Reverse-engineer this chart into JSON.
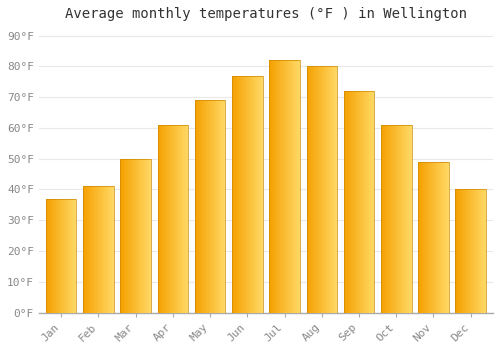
{
  "title": "Average monthly temperatures (°F ) in Wellington",
  "months": [
    "Jan",
    "Feb",
    "Mar",
    "Apr",
    "May",
    "Jun",
    "Jul",
    "Aug",
    "Sep",
    "Oct",
    "Nov",
    "Dec"
  ],
  "values": [
    37,
    41,
    50,
    61,
    69,
    77,
    82,
    80,
    72,
    61,
    49,
    40
  ],
  "bar_color_dark": "#F5A000",
  "bar_color_light": "#FFD966",
  "ylim": [
    0,
    93
  ],
  "yticks": [
    0,
    10,
    20,
    30,
    40,
    50,
    60,
    70,
    80,
    90
  ],
  "ytick_labels": [
    "0°F",
    "10°F",
    "20°F",
    "30°F",
    "40°F",
    "50°F",
    "60°F",
    "70°F",
    "80°F",
    "90°F"
  ],
  "bg_color": "#ffffff",
  "plot_bg_color": "#ffffff",
  "grid_color": "#e8e8e8",
  "title_fontsize": 10,
  "tick_fontsize": 8,
  "font_family": "monospace",
  "bar_width": 0.82,
  "bar_edge_color": "#CC8800"
}
